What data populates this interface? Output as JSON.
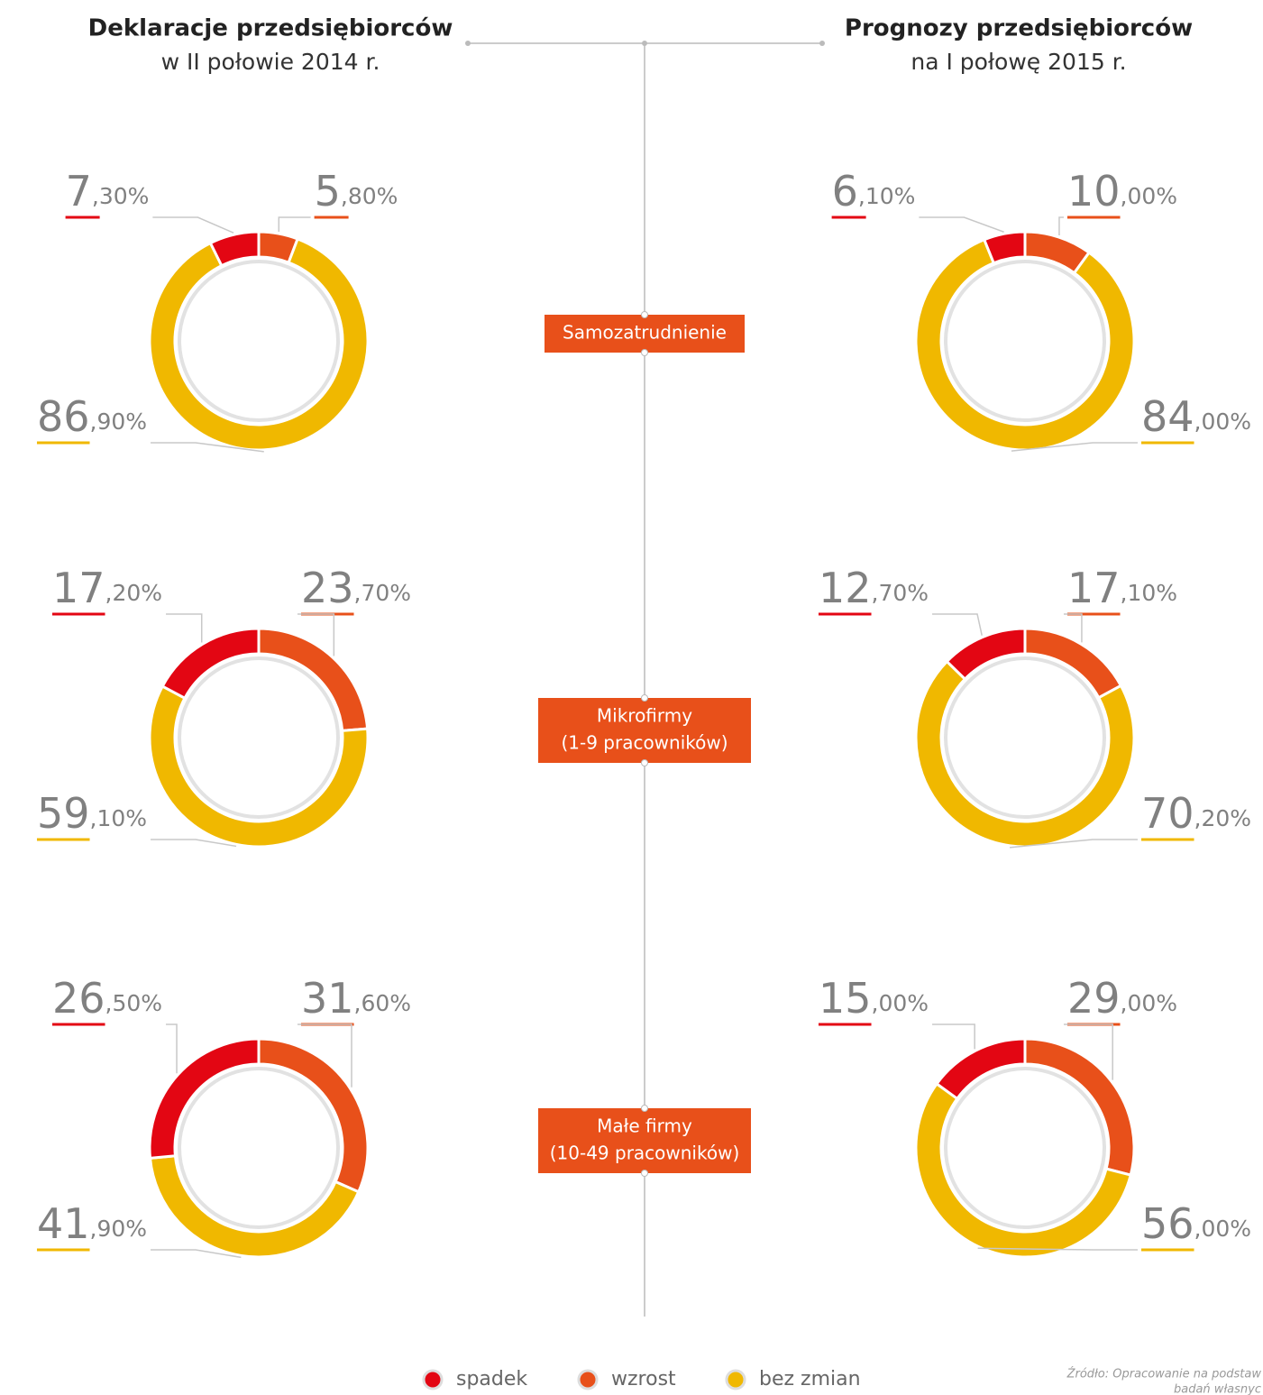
{
  "columns": [
    {
      "title": "Deklaracje przedsiębiorców",
      "subtitle": "w II połowie 2014 r."
    },
    {
      "title": "Prognozy przedsiębiorców",
      "subtitle": "na I połowę 2015 r."
    }
  ],
  "groups": [
    [
      "Samozatrudnienie"
    ],
    [
      "Mikrofirmy",
      "(1-9 pracowników)"
    ],
    [
      "Małe firmy",
      "(10-49 pracowników)"
    ]
  ],
  "legend": {
    "names": [
      "spadek",
      "wzrost",
      "bez zmian"
    ],
    "colors": [
      "#e30613",
      "#e8501a",
      "#f0b800"
    ]
  },
  "source": [
    "Źródło: Opracowanie na podstaw",
    "badań własnyc"
  ],
  "chart_data": [
    {
      "type": "donut",
      "values": [
        7.3,
        5.8,
        86.9
      ],
      "value_labels": [
        "7,30%",
        "5,80%",
        "86,90%"
      ]
    },
    {
      "type": "donut",
      "values": [
        17.2,
        23.7,
        59.1
      ],
      "value_labels": [
        "17,20%",
        "23,70%",
        "59,10%"
      ]
    },
    {
      "type": "donut",
      "values": [
        26.5,
        31.6,
        41.9
      ],
      "value_labels": [
        "26,50%",
        "31,60%",
        "41,90%"
      ]
    },
    {
      "type": "donut",
      "values": [
        6.1,
        10.0,
        84.0
      ],
      "value_labels": [
        "6,10%",
        "10,00%",
        "84,00%"
      ]
    },
    {
      "type": "donut",
      "values": [
        12.7,
        17.1,
        70.2
      ],
      "value_labels": [
        "12,70%",
        "17,10%",
        "70,20%"
      ]
    },
    {
      "type": "donut",
      "values": [
        15.0,
        29.0,
        56.0
      ],
      "value_labels": [
        "15,00%",
        "29,00%",
        "56,00%"
      ]
    }
  ]
}
